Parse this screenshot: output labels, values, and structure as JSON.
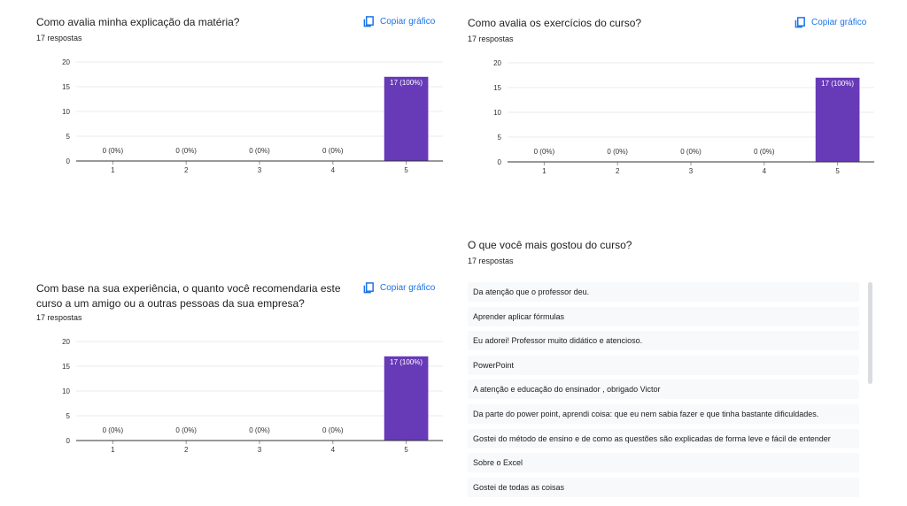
{
  "copy_label": "Copiar gráfico",
  "colors": {
    "bar": "#673ab7",
    "accent": "#1a73e8"
  },
  "chart_data": [
    {
      "type": "bar",
      "title": "Como avalia minha explicação da matéria?",
      "responses": "17 respostas",
      "categories": [
        "1",
        "2",
        "3",
        "4",
        "5"
      ],
      "values": [
        0,
        0,
        0,
        0,
        17
      ],
      "labels": [
        "0 (0%)",
        "0 (0%)",
        "0 (0%)",
        "0 (0%)",
        "17 (100%)"
      ],
      "yticks": [
        "0",
        "5",
        "10",
        "15",
        "20"
      ],
      "ylim": [
        0,
        20
      ],
      "grid": true
    },
    {
      "type": "bar",
      "title": "Como avalia os exercícios do curso?",
      "responses": "17 respostas",
      "categories": [
        "1",
        "2",
        "3",
        "4",
        "5"
      ],
      "values": [
        0,
        0,
        0,
        0,
        17
      ],
      "labels": [
        "0 (0%)",
        "0 (0%)",
        "0 (0%)",
        "0 (0%)",
        "17 (100%)"
      ],
      "yticks": [
        "0",
        "5",
        "10",
        "15",
        "20"
      ],
      "ylim": [
        0,
        20
      ],
      "grid": true
    },
    {
      "type": "bar",
      "title": "Com base na sua experiência, o quanto você recomendaria este curso a um amigo ou a outras pessoas da sua empresa?",
      "responses": "17 respostas",
      "categories": [
        "1",
        "2",
        "3",
        "4",
        "5"
      ],
      "values": [
        0,
        0,
        0,
        0,
        17
      ],
      "labels": [
        "0 (0%)",
        "0 (0%)",
        "0 (0%)",
        "0 (0%)",
        "17 (100%)"
      ],
      "yticks": [
        "0",
        "5",
        "10",
        "15",
        "20"
      ],
      "ylim": [
        0,
        20
      ],
      "grid": true
    }
  ],
  "text_question": {
    "title": "O que você mais gostou do curso?",
    "responses": "17 respostas",
    "answers": [
      "Da atenção que o professor deu.",
      "Aprender aplicar fórmulas",
      "Eu adorei! Professor muito didático e atencioso.",
      "PowerPoint",
      "A atenção e educação do ensinador , obrigado Victor",
      "Da parte do power point, aprendi coisa: que eu nem sabia fazer e que tinha bastante dificuldades.",
      "Gostei do método de ensino e de como as questões são explicadas de forma leve e fácil de entender",
      "Sobre o Excel",
      "Gostei de todas as coisas"
    ]
  }
}
